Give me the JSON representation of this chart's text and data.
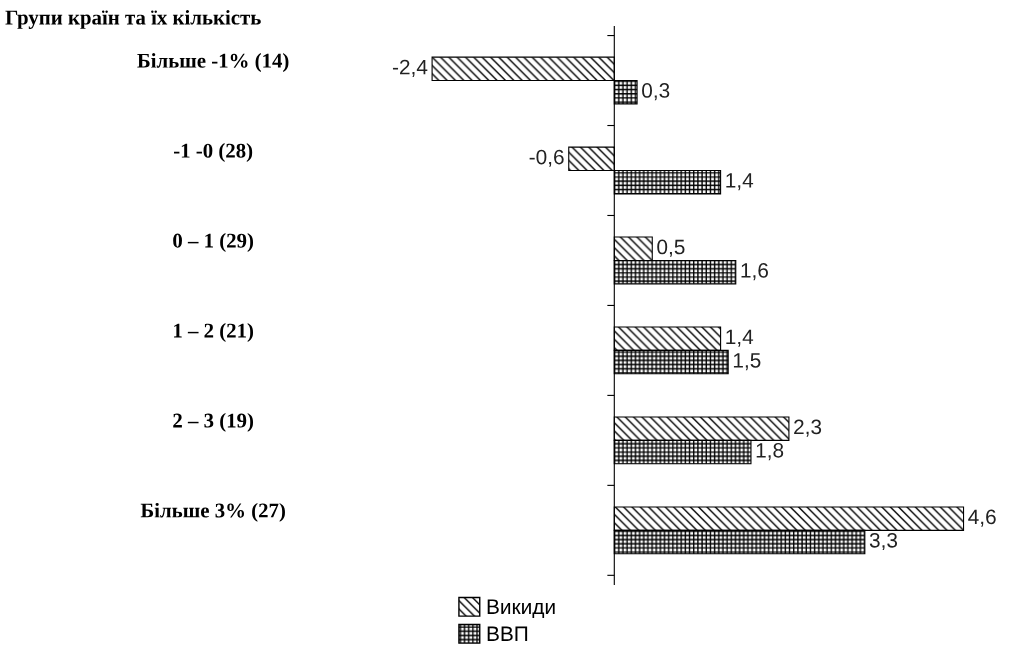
{
  "chart_data": {
    "type": "bar",
    "orientation": "horizontal",
    "title": "Групи країн та їх кількість",
    "categories": [
      "Більше -1% (14)",
      "-1 -0 (28)",
      "0 – 1 (29)",
      "1 – 2 (21)",
      "2 – 3 (19)",
      "Більше 3% (27)"
    ],
    "series": [
      {
        "name": "Викиди",
        "color": "#000000",
        "values": [
          -2.4,
          -0.6,
          0.5,
          1.4,
          2.3,
          4.6
        ],
        "value_labels": [
          "-2,4",
          "-0,6",
          "0,5",
          "1,4",
          "2,3",
          "4,6"
        ]
      },
      {
        "name": "ВВП",
        "color": "#000000",
        "values": [
          0.3,
          1.4,
          1.6,
          1.5,
          1.8,
          3.3
        ],
        "value_labels": [
          "0,3",
          "1,4",
          "1,6",
          "1,5",
          "1,8",
          "3,3"
        ]
      }
    ],
    "legend": "bottom",
    "grid": false
  }
}
